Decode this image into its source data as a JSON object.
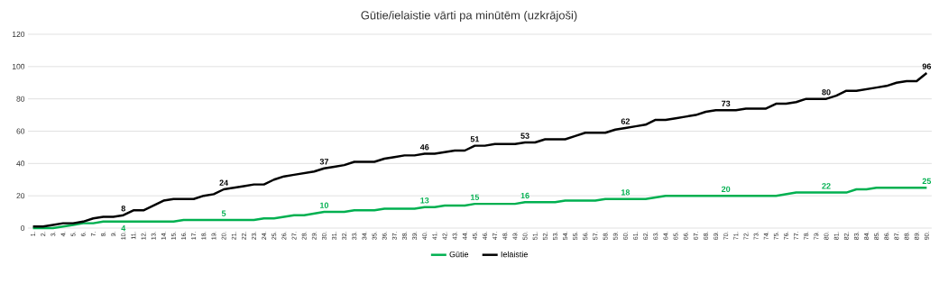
{
  "chart_data": {
    "type": "line",
    "title": "Gūtie/ielaistie  vārti pa minūtēm (uzkrājoši)",
    "categories": [
      "1.",
      "2.",
      "3.",
      "4.",
      "5.",
      "6.",
      "7.",
      "8.",
      "9.",
      "10.",
      "11.",
      "12.",
      "13.",
      "14.",
      "15.",
      "16.",
      "17.",
      "18.",
      "19.",
      "20.",
      "21.",
      "22.",
      "23.",
      "24.",
      "25.",
      "26.",
      "27.",
      "28.",
      "29.",
      "30.",
      "31.",
      "32.",
      "33.",
      "34.",
      "35.",
      "36.",
      "37.",
      "38.",
      "39.",
      "40.",
      "41.",
      "42.",
      "43.",
      "44.",
      "45.",
      "46.",
      "47.",
      "48.",
      "49.",
      "50.",
      "51.",
      "52.",
      "53.",
      "54.",
      "55.",
      "56.",
      "57.",
      "58.",
      "59.",
      "60.",
      "61.",
      "62.",
      "63.",
      "64.",
      "65.",
      "66.",
      "67.",
      "68.",
      "69.",
      "70.",
      "71.",
      "72.",
      "73.",
      "74.",
      "75.",
      "76.",
      "77.",
      "78.",
      "79.",
      "80.",
      "81.",
      "82.",
      "83.",
      "84.",
      "85.",
      "86.",
      "87.",
      "88.",
      "89.",
      "90."
    ],
    "series": [
      {
        "name": "Gūtie",
        "color": "#00b050",
        "values": [
          0,
          0,
          0,
          1,
          2,
          3,
          3,
          4,
          4,
          4,
          4,
          4,
          4,
          4,
          4,
          5,
          5,
          5,
          5,
          5,
          5,
          5,
          5,
          6,
          6,
          7,
          8,
          8,
          9,
          10,
          10,
          10,
          11,
          11,
          11,
          12,
          12,
          12,
          12,
          13,
          13,
          14,
          14,
          14,
          15,
          15,
          15,
          15,
          15,
          16,
          16,
          16,
          16,
          17,
          17,
          17,
          17,
          18,
          18,
          18,
          18,
          18,
          19,
          20,
          20,
          20,
          20,
          20,
          20,
          20,
          20,
          20,
          20,
          20,
          20,
          21,
          22,
          22,
          22,
          22,
          22,
          22,
          24,
          24,
          25,
          25,
          25,
          25,
          25,
          25
        ],
        "value_labels": [
          null,
          null,
          null,
          null,
          null,
          null,
          null,
          null,
          null,
          "4",
          null,
          null,
          null,
          null,
          null,
          null,
          null,
          null,
          null,
          "5",
          null,
          null,
          null,
          null,
          null,
          null,
          null,
          null,
          null,
          "10",
          null,
          null,
          null,
          null,
          null,
          null,
          null,
          null,
          null,
          "13",
          null,
          null,
          null,
          null,
          "15",
          null,
          null,
          null,
          null,
          "16",
          null,
          null,
          null,
          null,
          null,
          null,
          null,
          null,
          null,
          "18",
          null,
          null,
          null,
          null,
          null,
          null,
          null,
          null,
          null,
          "20",
          null,
          null,
          null,
          null,
          null,
          null,
          null,
          null,
          null,
          "22",
          null,
          null,
          null,
          null,
          null,
          null,
          null,
          null,
          null,
          "25"
        ]
      },
      {
        "name": "Ielaistie",
        "color": "#000000",
        "values": [
          1,
          1,
          2,
          3,
          3,
          4,
          6,
          7,
          7,
          8,
          11,
          11,
          14,
          17,
          18,
          18,
          18,
          20,
          21,
          24,
          25,
          26,
          27,
          27,
          30,
          32,
          33,
          34,
          35,
          37,
          38,
          39,
          41,
          41,
          41,
          43,
          44,
          45,
          45,
          46,
          46,
          47,
          48,
          48,
          51,
          51,
          52,
          52,
          52,
          53,
          53,
          55,
          55,
          55,
          57,
          59,
          59,
          59,
          61,
          62,
          63,
          64,
          67,
          67,
          68,
          69,
          70,
          72,
          73,
          73,
          73,
          74,
          74,
          74,
          77,
          77,
          78,
          80,
          80,
          80,
          82,
          85,
          85,
          86,
          87,
          88,
          90,
          91,
          91,
          96
        ],
        "value_labels": [
          null,
          null,
          null,
          null,
          null,
          null,
          null,
          null,
          null,
          "8",
          null,
          null,
          null,
          null,
          null,
          null,
          null,
          null,
          null,
          "24",
          null,
          null,
          null,
          null,
          null,
          null,
          null,
          null,
          null,
          "37",
          null,
          null,
          null,
          null,
          null,
          null,
          null,
          null,
          null,
          "46",
          null,
          null,
          null,
          null,
          "51",
          null,
          null,
          null,
          null,
          "53",
          null,
          null,
          null,
          null,
          null,
          null,
          null,
          null,
          null,
          "62",
          null,
          null,
          null,
          null,
          null,
          null,
          null,
          null,
          null,
          "73",
          null,
          null,
          null,
          null,
          null,
          null,
          null,
          null,
          null,
          "80",
          null,
          null,
          null,
          null,
          null,
          null,
          null,
          null,
          null,
          "96"
        ]
      }
    ],
    "ylim": [
      0,
      120
    ],
    "yticks": [
      0,
      20,
      40,
      60,
      80,
      100,
      120
    ],
    "grid": "y",
    "legend": "bottom",
    "marker": "none"
  }
}
